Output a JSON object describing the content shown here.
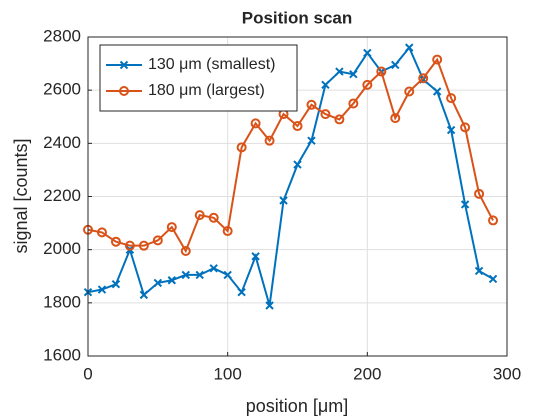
{
  "chart_data": {
    "type": "line",
    "title": "Position scan",
    "x_label": "position [μm]",
    "y_label": "signal [counts]",
    "x": [
      0,
      10,
      20,
      30,
      40,
      50,
      60,
      70,
      80,
      90,
      100,
      110,
      120,
      130,
      140,
      150,
      160,
      170,
      180,
      190,
      200,
      210,
      220,
      230,
      240,
      250,
      260,
      270,
      280,
      290
    ],
    "series": [
      {
        "name": "130 μm (smallest)",
        "color": "#0072bd",
        "marker": "x",
        "values": [
          1840,
          1850,
          1870,
          2000,
          1830,
          1875,
          1885,
          1905,
          1905,
          1930,
          1905,
          1840,
          1975,
          1790,
          2185,
          2320,
          2410,
          2620,
          2670,
          2660,
          2740,
          2670,
          2695,
          2760,
          2640,
          2595,
          2450,
          2170,
          1920,
          1890
        ]
      },
      {
        "name": "180 μm (largest)",
        "color": "#d95319",
        "marker": "o",
        "values": [
          2075,
          2065,
          2030,
          2015,
          2015,
          2035,
          2085,
          1995,
          2130,
          2120,
          2070,
          2385,
          2475,
          2410,
          2510,
          2465,
          2545,
          2510,
          2490,
          2550,
          2620,
          2670,
          2495,
          2595,
          2645,
          2715,
          2570,
          2460,
          2210,
          2110
        ]
      }
    ],
    "xlim": [
      0,
      300
    ],
    "xticks": [
      0,
      100,
      200,
      300
    ],
    "ylim": [
      1600,
      2800
    ],
    "yticks": [
      1600,
      1800,
      2000,
      2200,
      2400,
      2600,
      2800
    ],
    "grid": true,
    "legend_position": "upper-left"
  }
}
